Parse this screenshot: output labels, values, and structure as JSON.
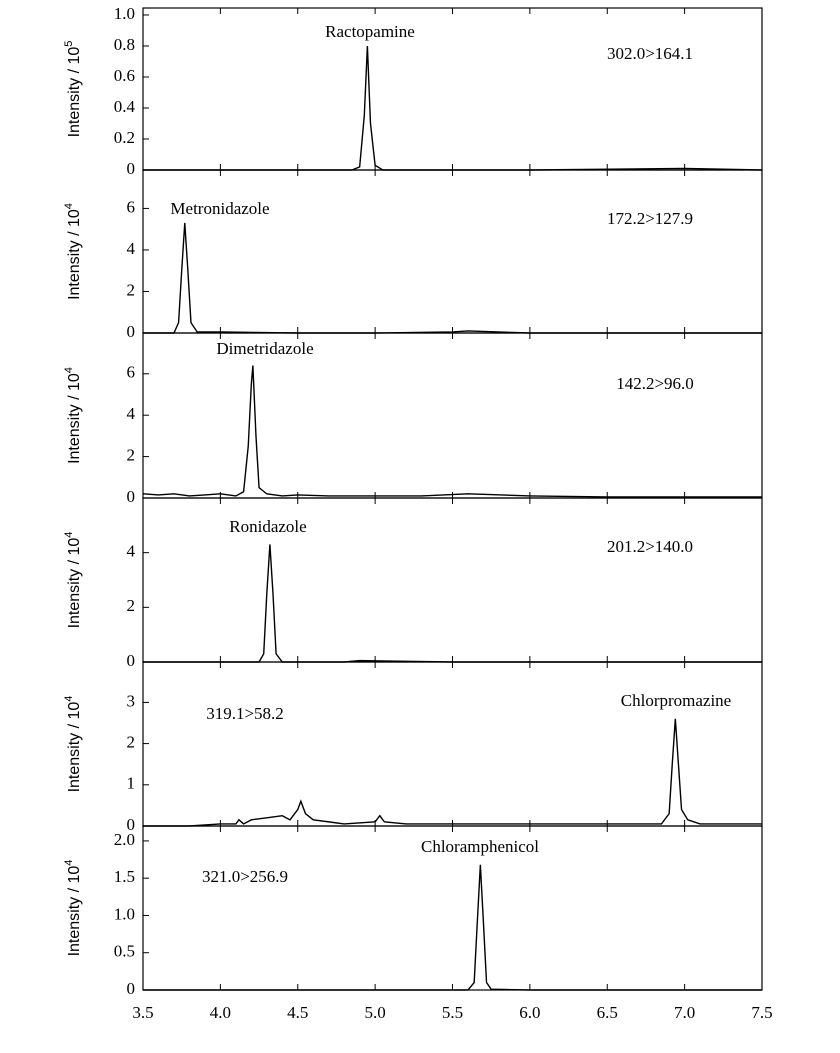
{
  "chart_data": [
    {
      "type": "line",
      "ylabel": "Intensity / 10",
      "ylabel_exponent": "5",
      "compound": "Ractopamine",
      "transition": "302.0>164.1",
      "color": "#000000",
      "x": [
        3.5,
        4.0,
        4.5,
        4.85,
        4.9,
        4.93,
        4.95,
        4.97,
        5.0,
        5.05,
        5.5,
        6.0,
        7.0,
        7.5
      ],
      "values": [
        0,
        0,
        0,
        0,
        0.02,
        0.35,
        0.8,
        0.3,
        0.03,
        0,
        0,
        0,
        0.01,
        0
      ],
      "xlim": [
        3.5,
        7.5
      ],
      "ylim": [
        0,
        1.045
      ],
      "yticks": [
        0,
        0.2,
        0.4,
        0.6,
        0.8,
        {
          "value": 1,
          "label": "1.0"
        }
      ]
    },
    {
      "type": "line",
      "ylabel": "Intensity / 10",
      "ylabel_exponent": "4",
      "compound": "Metronidazole",
      "transition": "172.2>127.9",
      "color": "#000000",
      "x": [
        3.5,
        3.7,
        3.73,
        3.75,
        3.77,
        3.79,
        3.81,
        3.85,
        4.0,
        4.5,
        5.0,
        5.5,
        5.6,
        6.0,
        7.0,
        7.5
      ],
      "values": [
        0,
        0,
        0.5,
        3,
        5.3,
        3,
        0.5,
        0.05,
        0.05,
        0,
        0,
        0.05,
        0.1,
        0,
        0,
        0
      ],
      "xlim": [
        3.5,
        7.5
      ],
      "ylim": [
        0,
        7.85
      ],
      "yticks": [
        0,
        2,
        4,
        6
      ]
    },
    {
      "type": "line",
      "ylabel": "Intensity / 10",
      "ylabel_exponent": "4",
      "compound": "Dimetridazole",
      "transition": "142.2>96.0",
      "color": "#000000",
      "x": [
        3.5,
        3.6,
        3.7,
        3.8,
        3.9,
        4.0,
        4.1,
        4.15,
        4.18,
        4.2,
        4.21,
        4.23,
        4.25,
        4.3,
        4.4,
        4.5,
        4.7,
        5.0,
        5.3,
        5.6,
        6.0,
        6.5,
        7.0,
        7.5
      ],
      "values": [
        0.2,
        0.15,
        0.2,
        0.1,
        0.15,
        0.2,
        0.1,
        0.3,
        2.5,
        5.5,
        6.4,
        3,
        0.5,
        0.2,
        0.1,
        0.15,
        0.1,
        0.1,
        0.1,
        0.2,
        0.1,
        0.05,
        0.05,
        0.05
      ],
      "xlim": [
        3.5,
        7.5
      ],
      "ylim": [
        0,
        7.97
      ],
      "yticks": [
        0,
        2,
        4,
        6
      ]
    },
    {
      "type": "line",
      "ylabel": "Intensity / 10",
      "ylabel_exponent": "4",
      "compound": "Ronidazole",
      "transition": "201.2>140.0",
      "color": "#000000",
      "x": [
        3.5,
        4.0,
        4.25,
        4.28,
        4.3,
        4.32,
        4.34,
        4.36,
        4.4,
        4.8,
        4.9,
        5.5,
        6.0,
        7.5
      ],
      "values": [
        0,
        0,
        0,
        0.3,
        2.5,
        4.3,
        2.5,
        0.3,
        0,
        0,
        0.05,
        0,
        0,
        0
      ],
      "xlim": [
        3.5,
        7.5
      ],
      "ylim": [
        0,
        6
      ],
      "yticks": [
        0,
        2,
        4
      ]
    },
    {
      "type": "line",
      "ylabel": "Intensity / 10",
      "ylabel_exponent": "4",
      "compound": "Chlorpromazine",
      "transition": "319.1>58.2",
      "color": "#000000",
      "x": [
        3.5,
        3.8,
        4.0,
        4.1,
        4.12,
        4.15,
        4.2,
        4.3,
        4.4,
        4.45,
        4.5,
        4.52,
        4.55,
        4.6,
        4.7,
        4.8,
        5.0,
        5.03,
        5.06,
        5.2,
        5.5,
        6.0,
        6.5,
        6.85,
        6.9,
        6.92,
        6.94,
        6.96,
        6.98,
        7.02,
        7.1,
        7.5
      ],
      "values": [
        0,
        0,
        0.05,
        0.05,
        0.15,
        0.05,
        0.15,
        0.2,
        0.25,
        0.15,
        0.4,
        0.6,
        0.3,
        0.15,
        0.1,
        0.05,
        0.1,
        0.25,
        0.1,
        0.05,
        0.05,
        0.05,
        0.05,
        0.05,
        0.3,
        1.5,
        2.6,
        1.5,
        0.4,
        0.15,
        0.05,
        0.05
      ],
      "xlim": [
        3.5,
        7.5
      ],
      "ylim": [
        0,
        3.98
      ],
      "yticks": [
        0,
        1,
        2,
        3
      ]
    },
    {
      "type": "line",
      "ylabel": "Intensity / 10",
      "ylabel_exponent": "4",
      "compound": "Chloramphenicol",
      "transition": "321.0>256.9",
      "color": "#000000",
      "x": [
        3.5,
        4.0,
        5.0,
        5.6,
        5.64,
        5.66,
        5.68,
        5.7,
        5.72,
        5.75,
        6.0,
        7.5
      ],
      "values": [
        0,
        0,
        0,
        0,
        0.1,
        0.9,
        1.68,
        0.9,
        0.1,
        0.01,
        0,
        0
      ],
      "xlim": [
        3.5,
        7.5
      ],
      "ylim": [
        0,
        2.2
      ],
      "yticks": [
        0,
        0.5,
        {
          "value": 1,
          "label": "1.0"
        },
        1.5,
        {
          "value": 2,
          "label": "2.0"
        }
      ],
      "xticks": [
        3.5,
        {
          "value": 4,
          "label": "4.0"
        },
        4.5,
        {
          "value": 5,
          "label": "5.0"
        },
        5.5,
        {
          "value": 6,
          "label": "6.0"
        },
        6.5,
        {
          "value": 7,
          "label": "7.0"
        },
        7.5
      ]
    }
  ]
}
